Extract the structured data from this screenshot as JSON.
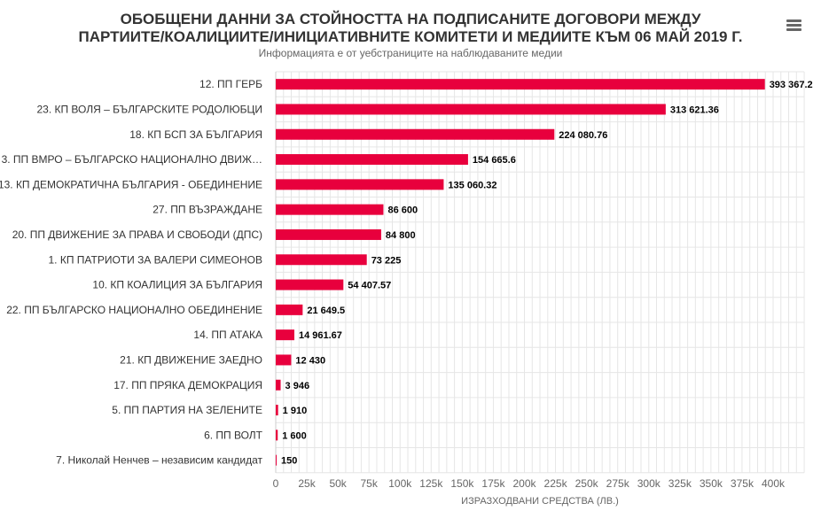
{
  "header": {
    "title_line1": "ОБОБЩЕНИ ДАННИ ЗА СТОЙНОСТТА НА ПОДПИСАНИТЕ ДОГОВОРИ МЕЖДУ",
    "title_line2": "ПАРТИИТЕ/КОАЛИЦИИТЕ/ИНИЦИАТИВНИТЕ КОМИТЕТИ И МЕДИИТЕ КЪМ 06 МАЙ 2019 Г.",
    "subtitle": "Информацията е от уебстраниците на наблюдаваните медии",
    "menu_icon": "hamburger-menu-icon"
  },
  "chart_data": {
    "type": "bar",
    "orientation": "horizontal",
    "title": "ОБОБЩЕНИ ДАННИ ЗА СТОЙНОСТТА НА ПОДПИСАНИТЕ ДОГОВОРИ МЕЖДУ ПАРТИИТЕ/КОАЛИЦИИТЕ/ИНИЦИАТИВНИТЕ КОМИТЕТИ И МЕДИИТЕ КЪМ 06 МАЙ 2019 Г.",
    "subtitle": "Информацията е от уебстраниците на наблюдаваните медии",
    "xlabel": "ИЗРАЗХОДВАНИ СРЕДСТВА (ЛВ.)",
    "ylabel": "",
    "xlim": [
      0,
      400000
    ],
    "grid": true,
    "bar_color": "#e8003d",
    "categories": [
      "12. ПП ГЕРБ",
      "23. КП ВОЛЯ – БЪЛГАРСКИТЕ РОДОЛЮБЦИ",
      "18. КП БСП ЗА БЪЛГАРИЯ",
      "3. ПП ВМРО – БЪЛГАРСКО НАЦИОНАЛНО ДВИЖ…",
      "13. КП ДЕМОКРАТИЧНА БЪЛГАРИЯ - ОБЕДИНЕНИЕ",
      "27. ПП ВЪЗРАЖДАНЕ",
      "20. ПП ДВИЖЕНИЕ ЗА ПРАВА И СВОБОДИ (ДПС)",
      "1. КП ПАТРИОТИ ЗА ВАЛЕРИ СИМЕОНОВ",
      "10. КП КОАЛИЦИЯ ЗА БЪЛГАРИЯ",
      "22. ПП БЪЛГАРСКО НАЦИОНАЛНО ОБЕДИНЕНИЕ",
      "14. ПП АТАКА",
      "21. КП ДВИЖЕНИЕ ЗАЕДНО",
      "17. ПП ПРЯКА ДЕМОКРАЦИЯ",
      "5. ПП ПАРТИЯ НА ЗЕЛЕНИТЕ",
      "6. ПП ВОЛТ",
      "7. Николай Ненчев – независим кандидат"
    ],
    "values": [
      393367.2,
      313621.36,
      224080.76,
      154665.6,
      135060.32,
      86600,
      84800,
      73225,
      54407.57,
      21649.5,
      14961.67,
      12430,
      3946,
      1910,
      1600,
      150
    ],
    "value_labels": [
      "393 367.2",
      "313 621.36",
      "224 080.76",
      "154 665.6",
      "135 060.32",
      "86 600",
      "84 800",
      "73 225",
      "54 407.57",
      "21 649.5",
      "14 961.67",
      "12 430",
      "3 946",
      "1 910",
      "1 600",
      "150"
    ],
    "ticks": [
      0,
      25000,
      50000,
      75000,
      100000,
      125000,
      150000,
      175000,
      200000,
      225000,
      250000,
      275000,
      300000,
      325000,
      350000,
      375000,
      400000
    ],
    "tick_labels": [
      "0",
      "25k",
      "50k",
      "75k",
      "100k",
      "125k",
      "150k",
      "175k",
      "200k",
      "225k",
      "250k",
      "275k",
      "300k",
      "325k",
      "350k",
      "375k",
      "400k"
    ]
  }
}
